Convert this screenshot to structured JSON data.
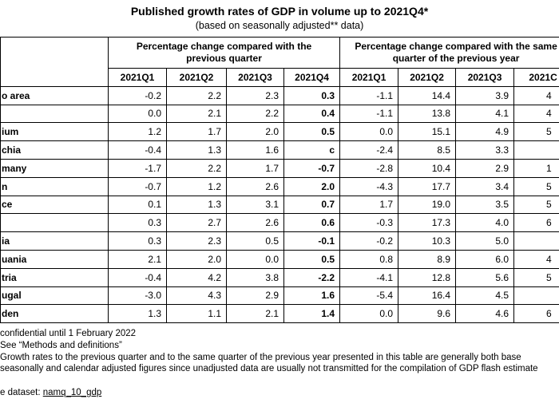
{
  "title": "Published growth rates of GDP in volume up to 2021Q4*",
  "subtitle": "(based on seasonally adjusted** data)",
  "header": {
    "group1": "Percentage change compared with the previous quarter",
    "group2": "Percentage change compared with the same quarter of the previous year",
    "quarters": [
      "2021Q1",
      "2021Q2",
      "2021Q3",
      "2021Q4",
      "2021Q1",
      "2021Q2",
      "2021Q3",
      "2021C"
    ]
  },
  "table": {
    "rows": [
      {
        "label": "o area",
        "values": [
          "-0.2",
          "2.2",
          "2.3",
          "0.3",
          "-1.1",
          "14.4",
          "3.9",
          "4"
        ]
      },
      {
        "label": null,
        "values": [
          "0.0",
          "2.1",
          "2.2",
          "0.4",
          "-1.1",
          "13.8",
          "4.1",
          "4"
        ]
      },
      {
        "label": "ium",
        "values": [
          "1.2",
          "1.7",
          "2.0",
          "0.5",
          "0.0",
          "15.1",
          "4.9",
          "5"
        ]
      },
      {
        "label": "chia",
        "values": [
          "-0.4",
          "1.3",
          "1.6",
          "c",
          "-2.4",
          "8.5",
          "3.3",
          null
        ]
      },
      {
        "label": "many",
        "values": [
          "-1.7",
          "2.2",
          "1.7",
          "-0.7",
          "-2.8",
          "10.4",
          "2.9",
          "1"
        ]
      },
      {
        "label": "n",
        "values": [
          "-0.7",
          "1.2",
          "2.6",
          "2.0",
          "-4.3",
          "17.7",
          "3.4",
          "5"
        ]
      },
      {
        "label": "ce",
        "values": [
          "0.1",
          "1.3",
          "3.1",
          "0.7",
          "1.7",
          "19.0",
          "3.5",
          "5"
        ]
      },
      {
        "label": null,
        "values": [
          "0.3",
          "2.7",
          "2.6",
          "0.6",
          "-0.3",
          "17.3",
          "4.0",
          "6"
        ]
      },
      {
        "label": "ia",
        "values": [
          "0.3",
          "2.3",
          "0.5",
          "-0.1",
          "-0.2",
          "10.3",
          "5.0",
          null
        ]
      },
      {
        "label": "uania",
        "values": [
          "2.1",
          "2.0",
          "0.0",
          "0.5",
          "0.8",
          "8.9",
          "6.0",
          "4"
        ]
      },
      {
        "label": "tria",
        "values": [
          "-0.4",
          "4.2",
          "3.8",
          "-2.2",
          "-4.1",
          "12.8",
          "5.6",
          "5"
        ]
      },
      {
        "label": "ugal",
        "values": [
          "-3.0",
          "4.3",
          "2.9",
          "1.6",
          "-5.4",
          "16.4",
          "4.5",
          null
        ]
      },
      {
        "label": "den",
        "values": [
          "1.3",
          "1.1",
          "2.1",
          "1.4",
          "0.0",
          "9.6",
          "4.6",
          "6"
        ]
      }
    ]
  },
  "footnotes": [
    "confidential until 1 February 2022",
    "See “Methods and definitions”",
    "Growth rates to the previous quarter and to the same quarter of the previous year presented in this table are generally both base",
    "seasonally and calendar adjusted figures since unadjusted data are usually not transmitted for the compilation of GDP flash estimate"
  ],
  "dataset": {
    "prefix": "e dataset:",
    "link": "namq_10_gdp"
  }
}
